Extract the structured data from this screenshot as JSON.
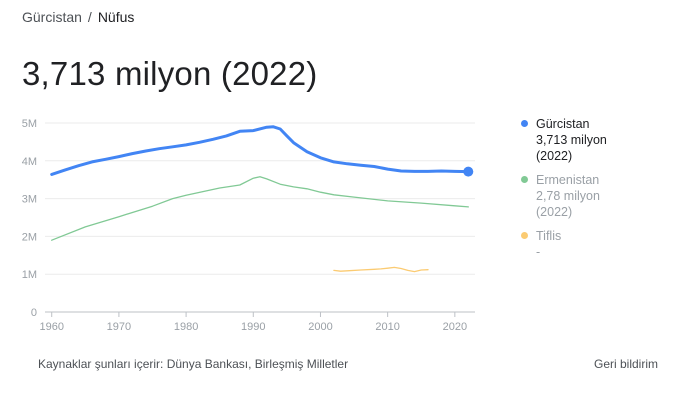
{
  "breadcrumb": {
    "parent": "Gürcistan",
    "separator": "/",
    "current": "Nüfus"
  },
  "headline": "3,713 milyon (2022)",
  "legend": [
    {
      "name": "Gürcistan",
      "value": "3,713 milyon",
      "year": "(2022)",
      "color": "#4285f4",
      "active": true
    },
    {
      "name": "Ermenistan",
      "value": "2,78 milyon",
      "year": "(2022)",
      "color": "#81c995",
      "active": false
    },
    {
      "name": "Tiflis",
      "value": "-",
      "year": "",
      "color": "#fbcb72",
      "active": false
    }
  ],
  "footer": {
    "sources": "Kaynaklar şunları içerir: Dünya Bankası, Birleşmiş Milletler",
    "feedback": "Geri bildirim"
  },
  "chart_data": {
    "type": "line",
    "xlim": [
      1959,
      2023
    ],
    "ylim": [
      0,
      5000000
    ],
    "x_ticks": [
      1960,
      1970,
      1980,
      1990,
      2000,
      2010,
      2020
    ],
    "y_ticks": [
      0,
      1000000,
      2000000,
      3000000,
      4000000,
      5000000
    ],
    "y_tick_labels": [
      "0",
      "1M",
      "2M",
      "3M",
      "4M",
      "5M"
    ],
    "grid": true,
    "legend_position": "right",
    "series": [
      {
        "name": "Gürcistan",
        "color": "#4285f4",
        "x": [
          1960,
          1962,
          1964,
          1966,
          1968,
          1970,
          1972,
          1974,
          1976,
          1978,
          1980,
          1982,
          1984,
          1986,
          1988,
          1990,
          1992,
          1993,
          1994,
          1995,
          1996,
          1998,
          2000,
          2002,
          2004,
          2006,
          2008,
          2010,
          2012,
          2014,
          2016,
          2018,
          2020,
          2022
        ],
        "y": [
          3640000,
          3760000,
          3870000,
          3970000,
          4040000,
          4110000,
          4190000,
          4260000,
          4320000,
          4370000,
          4420000,
          4490000,
          4570000,
          4660000,
          4780000,
          4800000,
          4890000,
          4900000,
          4840000,
          4660000,
          4480000,
          4240000,
          4080000,
          3970000,
          3920000,
          3880000,
          3850000,
          3780000,
          3730000,
          3720000,
          3720000,
          3730000,
          3720000,
          3713000
        ]
      },
      {
        "name": "Ermenistan",
        "color": "#81c995",
        "x": [
          1960,
          1965,
          1970,
          1975,
          1978,
          1980,
          1985,
          1988,
          1990,
          1991,
          1992,
          1994,
          1996,
          1998,
          2000,
          2002,
          2005,
          2010,
          2015,
          2020,
          2022
        ],
        "y": [
          1900000,
          2250000,
          2520000,
          2800000,
          3000000,
          3090000,
          3280000,
          3360000,
          3540000,
          3580000,
          3520000,
          3380000,
          3310000,
          3260000,
          3170000,
          3100000,
          3040000,
          2940000,
          2880000,
          2810000,
          2780000
        ]
      },
      {
        "name": "Tiflis",
        "color": "#fbcb72",
        "x": [
          2002,
          2003,
          2004,
          2006,
          2008,
          2009,
          2010,
          2011,
          2012,
          2013,
          2014,
          2015,
          2016
        ],
        "y": [
          1100000,
          1080000,
          1090000,
          1110000,
          1130000,
          1140000,
          1160000,
          1180000,
          1150000,
          1100000,
          1070000,
          1110000,
          1120000
        ]
      }
    ],
    "highlight_point": {
      "x": 2022,
      "y": 3713000
    }
  }
}
